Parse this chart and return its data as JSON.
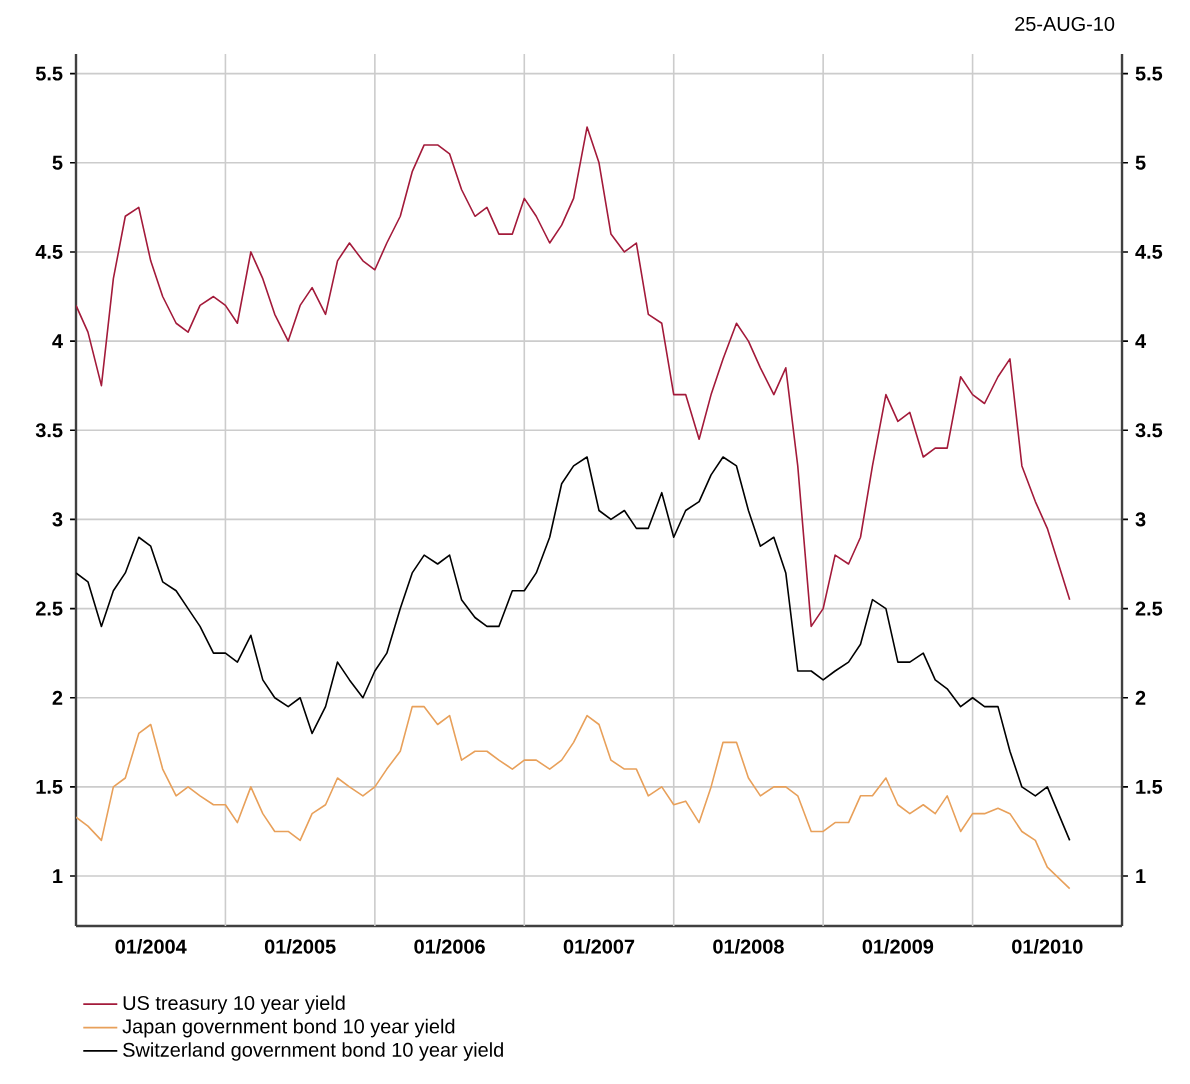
{
  "chart_data": {
    "type": "line",
    "title": "25-AUG-10",
    "x": [
      "2004-01",
      "2004-02",
      "2004-03",
      "2004-04",
      "2004-05",
      "2004-06",
      "2004-07",
      "2004-08",
      "2004-09",
      "2004-10",
      "2004-11",
      "2004-12",
      "2005-01",
      "2005-02",
      "2005-03",
      "2005-04",
      "2005-05",
      "2005-06",
      "2005-07",
      "2005-08",
      "2005-09",
      "2005-10",
      "2005-11",
      "2005-12",
      "2006-01",
      "2006-02",
      "2006-03",
      "2006-04",
      "2006-05",
      "2006-06",
      "2006-07",
      "2006-08",
      "2006-09",
      "2006-10",
      "2006-11",
      "2006-12",
      "2007-01",
      "2007-02",
      "2007-03",
      "2007-04",
      "2007-05",
      "2007-06",
      "2007-07",
      "2007-08",
      "2007-09",
      "2007-10",
      "2007-11",
      "2007-12",
      "2008-01",
      "2008-02",
      "2008-03",
      "2008-04",
      "2008-05",
      "2008-06",
      "2008-07",
      "2008-08",
      "2008-09",
      "2008-10",
      "2008-11",
      "2008-12",
      "2009-01",
      "2009-02",
      "2009-03",
      "2009-04",
      "2009-05",
      "2009-06",
      "2009-07",
      "2009-08",
      "2009-09",
      "2009-10",
      "2009-11",
      "2009-12",
      "2010-01",
      "2010-02",
      "2010-03",
      "2010-04",
      "2010-05",
      "2010-06",
      "2010-07",
      "2010-08-25"
    ],
    "series": [
      {
        "name": "US treasury 10 year yield",
        "color": "#a31a3a",
        "values": [
          4.2,
          4.05,
          3.75,
          4.35,
          4.7,
          4.75,
          4.45,
          4.25,
          4.1,
          4.05,
          4.2,
          4.25,
          4.2,
          4.1,
          4.5,
          4.35,
          4.15,
          4.0,
          4.2,
          4.3,
          4.15,
          4.45,
          4.55,
          4.45,
          4.4,
          4.55,
          4.7,
          4.95,
          5.1,
          5.1,
          5.05,
          4.85,
          4.7,
          4.75,
          4.6,
          4.6,
          4.8,
          4.7,
          4.55,
          4.65,
          4.8,
          5.2,
          5.0,
          4.6,
          4.5,
          4.55,
          4.15,
          4.1,
          3.7,
          3.7,
          3.45,
          3.7,
          3.9,
          4.1,
          4.0,
          3.85,
          3.7,
          3.85,
          3.3,
          2.4,
          2.5,
          2.8,
          2.75,
          2.9,
          3.3,
          3.7,
          3.55,
          3.6,
          3.35,
          3.4,
          3.4,
          3.8,
          3.7,
          3.65,
          3.8,
          3.9,
          3.3,
          3.1,
          2.95,
          2.55
        ]
      },
      {
        "name": "Japan government bond 10 year yield",
        "color": "#e8a05a",
        "values": [
          1.33,
          1.28,
          1.2,
          1.5,
          1.55,
          1.8,
          1.85,
          1.6,
          1.45,
          1.5,
          1.45,
          1.4,
          1.4,
          1.3,
          1.5,
          1.35,
          1.25,
          1.25,
          1.2,
          1.35,
          1.4,
          1.55,
          1.5,
          1.45,
          1.5,
          1.6,
          1.7,
          1.95,
          1.95,
          1.85,
          1.9,
          1.65,
          1.7,
          1.7,
          1.65,
          1.6,
          1.65,
          1.65,
          1.6,
          1.65,
          1.75,
          1.9,
          1.85,
          1.65,
          1.6,
          1.6,
          1.45,
          1.5,
          1.4,
          1.42,
          1.3,
          1.5,
          1.75,
          1.75,
          1.55,
          1.45,
          1.5,
          1.5,
          1.45,
          1.25,
          1.25,
          1.3,
          1.3,
          1.45,
          1.45,
          1.55,
          1.4,
          1.35,
          1.4,
          1.35,
          1.45,
          1.25,
          1.35,
          1.35,
          1.38,
          1.35,
          1.25,
          1.2,
          1.05,
          0.93
        ]
      },
      {
        "name": "Switzerland government bond 10 year yield",
        "color": "#000000",
        "values": [
          2.7,
          2.65,
          2.4,
          2.6,
          2.7,
          2.9,
          2.85,
          2.65,
          2.6,
          2.5,
          2.4,
          2.25,
          2.25,
          2.2,
          2.35,
          2.1,
          2.0,
          1.95,
          2.0,
          1.8,
          1.95,
          2.2,
          2.1,
          2.0,
          2.15,
          2.25,
          2.5,
          2.7,
          2.8,
          2.75,
          2.8,
          2.55,
          2.45,
          2.4,
          2.4,
          2.6,
          2.6,
          2.7,
          2.9,
          3.2,
          3.3,
          3.35,
          3.05,
          3.0,
          3.05,
          2.95,
          2.95,
          3.15,
          2.9,
          3.05,
          3.1,
          3.25,
          3.35,
          3.3,
          3.05,
          2.85,
          2.9,
          2.7,
          2.15,
          2.15,
          2.1,
          2.15,
          2.2,
          2.3,
          2.55,
          2.5,
          2.2,
          2.2,
          2.25,
          2.1,
          2.05,
          1.95,
          2.0,
          1.95,
          1.95,
          1.7,
          1.5,
          1.45,
          1.5,
          1.2
        ]
      }
    ],
    "xlim": [
      "2004-01",
      "2011-01"
    ],
    "xticks": [
      {
        "value": "2004-07",
        "label": "01/2004"
      },
      {
        "value": "2005-07",
        "label": "01/2005"
      },
      {
        "value": "2006-07",
        "label": "01/2006"
      },
      {
        "value": "2007-07",
        "label": "01/2007"
      },
      {
        "value": "2008-07",
        "label": "01/2008"
      },
      {
        "value": "2009-07",
        "label": "01/2009"
      },
      {
        "value": "2010-07",
        "label": "01/2010"
      },
      {
        "value": "2005-01",
        "label": null
      },
      {
        "value": "2006-01",
        "label": null
      },
      {
        "value": "2007-01",
        "label": null
      },
      {
        "value": "2008-01",
        "label": null
      },
      {
        "value": "2009-01",
        "label": null
      },
      {
        "value": "2010-01",
        "label": null
      }
    ],
    "ylim": [
      0.72,
      5.61
    ],
    "yticks": [
      1,
      1.5,
      2,
      2.5,
      3,
      3.5,
      4,
      4.5,
      5,
      5.5
    ],
    "y2lim": [
      0.72,
      5.61
    ],
    "y2ticks": [
      1,
      1.5,
      2,
      2.5,
      3,
      3.5,
      4,
      4.5,
      5,
      5.5
    ],
    "grid": true,
    "legend": "bottom",
    "marker": "none",
    "line_style": "solid"
  }
}
